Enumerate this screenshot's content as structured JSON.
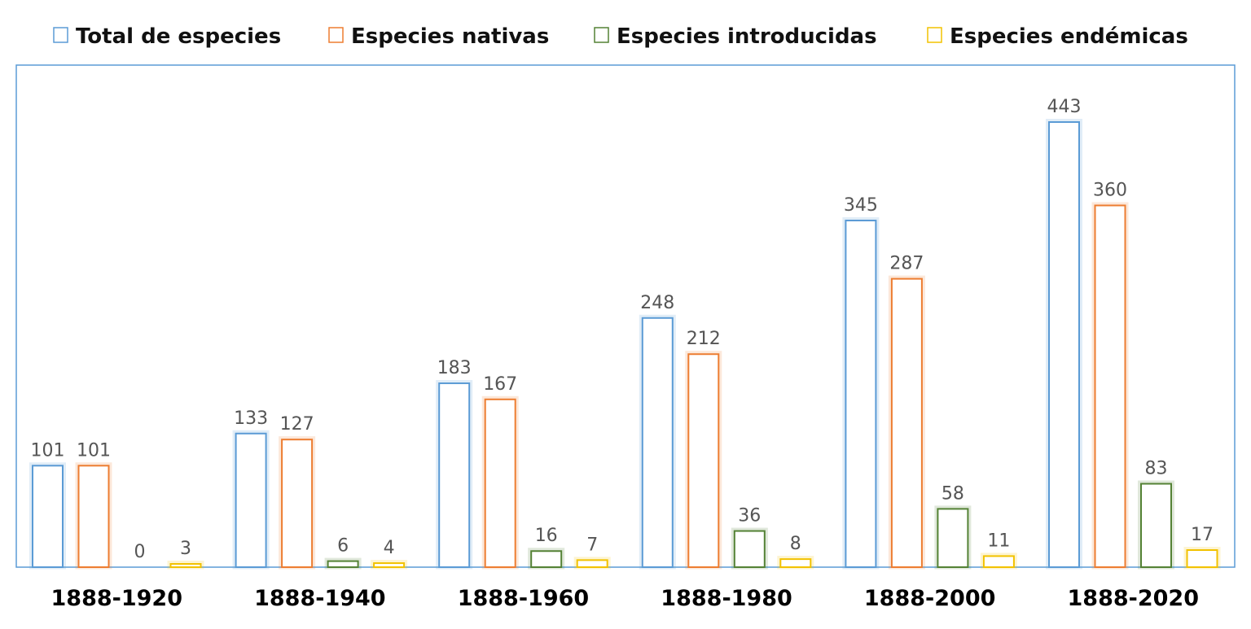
{
  "chart_data": {
    "type": "bar",
    "categories": [
      "1888-1920",
      "1888-1940",
      "1888-1960",
      "1888-1980",
      "1888-2000",
      "1888-2020"
    ],
    "series": [
      {
        "name": "Total de especies",
        "color": "#5b9bd5",
        "values": [
          101,
          133,
          183,
          248,
          345,
          443
        ]
      },
      {
        "name": "Especies nativas",
        "color": "#ed7d31",
        "values": [
          101,
          127,
          167,
          212,
          287,
          360
        ]
      },
      {
        "name": "Especies introducidas",
        "color": "#548235",
        "values": [
          0,
          6,
          16,
          36,
          58,
          83
        ]
      },
      {
        "name": "Especies endémicas",
        "color": "#f2c200",
        "values": [
          3,
          4,
          7,
          8,
          11,
          17
        ]
      }
    ],
    "ylim": [
      0,
      500
    ],
    "legend_position": "top",
    "grid": false,
    "plot_border_color": "#5b9bd5"
  }
}
